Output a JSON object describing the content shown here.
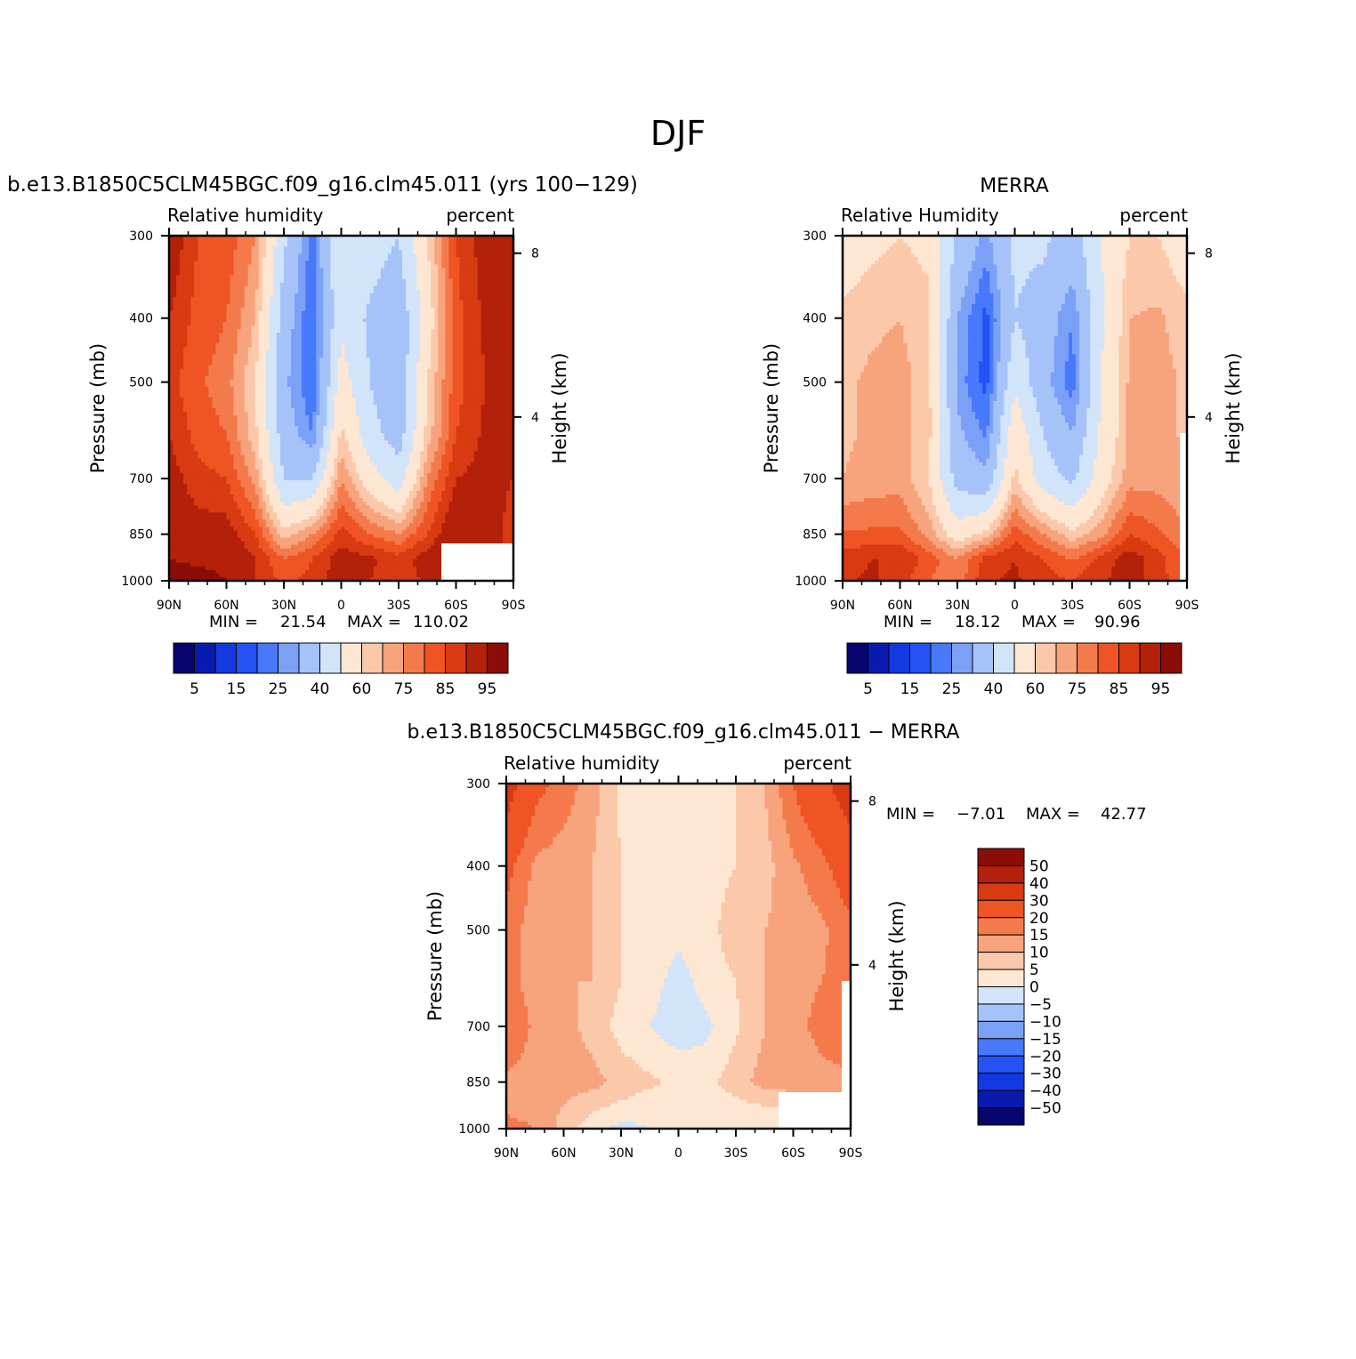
{
  "page": {
    "title": "DJF"
  },
  "chart_data": [
    {
      "type": "heatmap",
      "title": "b.e13.B1850C5CLM45BGC.f09_g16.clm45.011 (yrs 100−129)",
      "left_label": "Relative humidity",
      "right_label": "percent",
      "ylabel": "Pressure (mb)",
      "ylabel_right": "Height (km)",
      "x_ticks": [
        "90N",
        "60N",
        "30N",
        "0",
        "30S",
        "60S",
        "90S"
      ],
      "y_ticks": [
        "300",
        "400",
        "500",
        "700",
        "850",
        "1000"
      ],
      "y_ticks_right": [
        "8",
        "4"
      ],
      "stats": {
        "min_label": "MIN =",
        "min": "21.54",
        "max_label": "MAX =",
        "max": "110.02"
      },
      "colorbar_ticks": [
        "5",
        "15",
        "25",
        "40",
        "60",
        "75",
        "85",
        "95"
      ],
      "lat": [
        90,
        75,
        60,
        45,
        30,
        15,
        0,
        -15,
        -30,
        -45,
        -60,
        -75,
        -90
      ],
      "pressure": [
        300,
        400,
        500,
        600,
        700,
        850,
        925,
        1000
      ],
      "values": [
        [
          90,
          80,
          78,
          70,
          42,
          22,
          50,
          45,
          40,
          60,
          80,
          88,
          90
        ],
        [
          85,
          78,
          75,
          65,
          35,
          20,
          48,
          38,
          32,
          55,
          78,
          86,
          90
        ],
        [
          82,
          76,
          72,
          60,
          32,
          20,
          55,
          40,
          32,
          60,
          78,
          85,
          88
        ],
        [
          85,
          78,
          75,
          62,
          35,
          25,
          62,
          44,
          35,
          62,
          80,
          86,
          88
        ],
        [
          88,
          82,
          80,
          68,
          40,
          40,
          70,
          55,
          45,
          70,
          85,
          87,
          85
        ],
        [
          90,
          88,
          88,
          80,
          62,
          70,
          82,
          75,
          70,
          80,
          92,
          90,
          82
        ],
        [
          95,
          92,
          92,
          85,
          75,
          80,
          88,
          86,
          82,
          88,
          95,
          90,
          80
        ],
        [
          102,
          100,
          95,
          85,
          78,
          82,
          88,
          85,
          82,
          86,
          90,
          88,
          82
        ]
      ]
    },
    {
      "type": "heatmap",
      "title": "MERRA",
      "left_label": "Relative Humidity",
      "right_label": "percent",
      "ylabel": "Pressure (mb)",
      "ylabel_right": "Height (km)",
      "x_ticks": [
        "90N",
        "60N",
        "30N",
        "0",
        "30S",
        "60S",
        "90S"
      ],
      "y_ticks": [
        "300",
        "400",
        "500",
        "700",
        "850",
        "1000"
      ],
      "y_ticks_right": [
        "8",
        "4"
      ],
      "stats": {
        "min_label": "MIN =",
        "min": "18.12",
        "max_label": "MAX =",
        "max": "90.96"
      },
      "colorbar_ticks": [
        "5",
        "15",
        "25",
        "40",
        "60",
        "75",
        "85",
        "95"
      ],
      "lat": [
        90,
        75,
        60,
        45,
        30,
        15,
        0,
        -15,
        -30,
        -45,
        -60,
        -75,
        -90
      ],
      "pressure": [
        300,
        400,
        500,
        600,
        700,
        850,
        925,
        1000
      ],
      "values": [
        [
          55,
          58,
          60,
          58,
          38,
          28,
          42,
          42,
          35,
          50,
          60,
          60,
          55
        ],
        [
          62,
          64,
          65,
          62,
          30,
          18,
          40,
          35,
          25,
          48,
          65,
          66,
          62
        ],
        [
          64,
          66,
          67,
          62,
          28,
          18,
          48,
          33,
          22,
          50,
          66,
          67,
          64
        ],
        [
          64,
          66,
          67,
          62,
          32,
          24,
          58,
          40,
          30,
          52,
          66,
          67,
          64
        ],
        [
          65,
          67,
          68,
          60,
          36,
          32,
          62,
          45,
          38,
          55,
          68,
          68,
          66
        ],
        [
          76,
          76,
          76,
          68,
          55,
          62,
          78,
          70,
          62,
          68,
          80,
          76,
          70
        ],
        [
          82,
          85,
          85,
          78,
          70,
          82,
          85,
          80,
          74,
          82,
          88,
          82,
          75
        ],
        [
          84,
          86,
          82,
          75,
          72,
          84,
          86,
          82,
          80,
          84,
          88,
          82,
          76
        ]
      ]
    },
    {
      "type": "heatmap",
      "title": "b.e13.B1850C5CLM45BGC.f09_g16.clm45.011 − MERRA",
      "left_label": "Relative humidity",
      "right_label": "percent",
      "ylabel": "Pressure (mb)",
      "ylabel_right": "Height (km)",
      "x_ticks": [
        "90N",
        "60N",
        "30N",
        "0",
        "30S",
        "60S",
        "90S"
      ],
      "y_ticks": [
        "300",
        "400",
        "500",
        "700",
        "850",
        "1000"
      ],
      "y_ticks_right": [
        "8",
        "4"
      ],
      "stats": {
        "min_label": "MIN =",
        "min": "−7.01",
        "max_label": "MAX =",
        "max": "42.77"
      },
      "colorbar_ticks": [
        "50",
        "40",
        "30",
        "20",
        "15",
        "10",
        "5",
        "0",
        "−5",
        "−10",
        "−15",
        "−20",
        "−30",
        "−40",
        "−50"
      ],
      "lat": [
        90,
        75,
        60,
        45,
        30,
        15,
        0,
        -15,
        -30,
        -45,
        -60,
        -75,
        -90
      ],
      "pressure": [
        300,
        400,
        500,
        600,
        700,
        850,
        925,
        1000
      ],
      "values": [
        [
          35,
          22,
          18,
          12,
          4,
          3,
          2,
          3,
          5,
          10,
          20,
          28,
          35
        ],
        [
          22,
          14,
          12,
          10,
          5,
          3,
          1,
          3,
          5,
          8,
          14,
          18,
          25
        ],
        [
          18,
          12,
          11,
          10,
          5,
          3,
          1,
          3,
          8,
          10,
          12,
          14,
          18
        ],
        [
          18,
          12,
          10,
          10,
          5,
          2,
          -2,
          2,
          5,
          10,
          14,
          15,
          18
        ],
        [
          20,
          14,
          12,
          8,
          3,
          0,
          -3,
          -1,
          4,
          10,
          14,
          16,
          18
        ],
        [
          14,
          12,
          12,
          12,
          8,
          6,
          4,
          3,
          8,
          12,
          13,
          14,
          14
        ],
        [
          13,
          12,
          10,
          6,
          4,
          2,
          2,
          2,
          3,
          5,
          5,
          8,
          10
        ],
        [
          18,
          15,
          8,
          2,
          -2,
          0,
          2,
          2,
          2,
          2,
          3,
          6,
          8
        ]
      ]
    }
  ],
  "diff_scale": {
    "labels": [
      "50",
      "40",
      "30",
      "20",
      "15",
      "10",
      "5",
      "0",
      "−5",
      "−10",
      "−15",
      "−20",
      "−30",
      "−40",
      "−50"
    ]
  }
}
